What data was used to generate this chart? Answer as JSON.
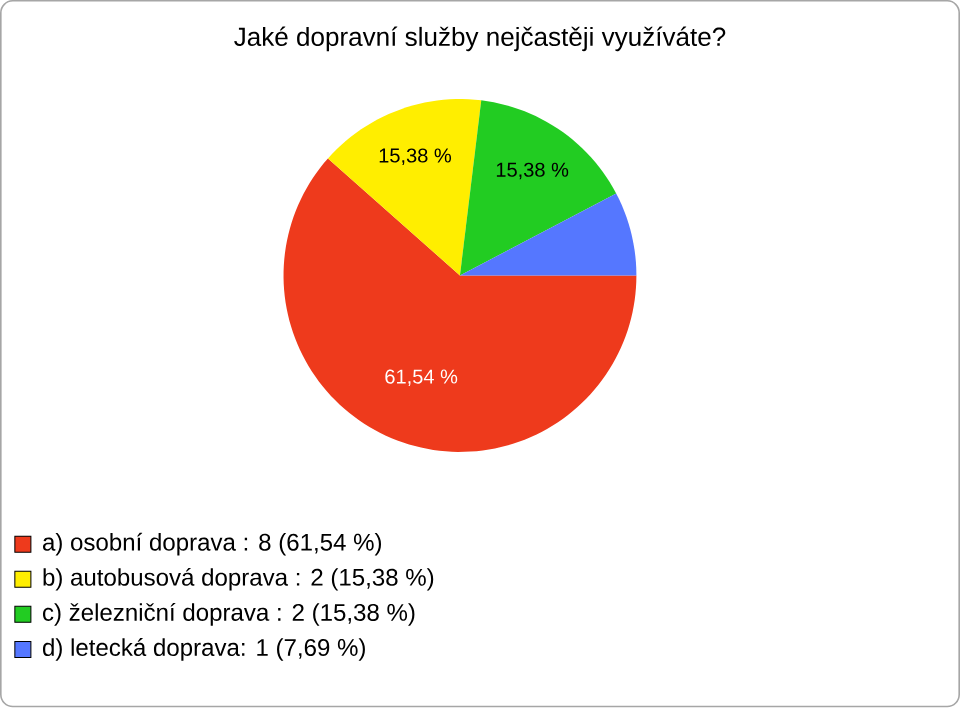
{
  "chart_data": {
    "type": "pie",
    "title": "Jaké dopravní služby nejčastěji využíváte?",
    "categories": [
      "a) osobní doprava : 8 (61,54 %)",
      "b) autobusová doprava : 2 (15,38 %)",
      "c) železniční doprava : 2 (15,38 %)",
      "d) letecká doprava: 1 (7,69 %)"
    ],
    "values": [
      61.54,
      15.38,
      15.38,
      7.69
    ],
    "colors": [
      "#ee3a1c",
      "#ffee00",
      "#22cc22",
      "#5577ff"
    ],
    "value_labels": [
      "61,54 %",
      "15,38 %",
      "15,38 %",
      null
    ],
    "legend": "bottom left"
  }
}
